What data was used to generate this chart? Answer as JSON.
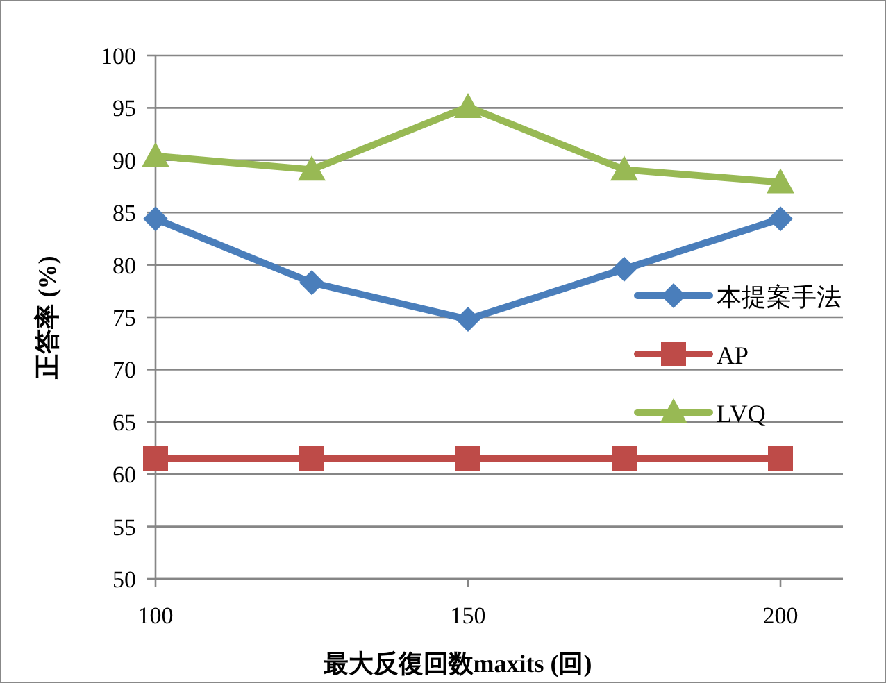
{
  "chart_data": {
    "type": "line",
    "xlabel": "最大反復回数maxits (回)",
    "ylabel": "正答率 (%)",
    "x": [
      100,
      125,
      150,
      175,
      200
    ],
    "series": [
      {
        "name": "本提案手法",
        "color": "#4a7ebb",
        "marker": "diamond",
        "values": [
          84.4,
          78.3,
          74.8,
          79.6,
          84.4
        ]
      },
      {
        "name": "AP",
        "color": "#be4b48",
        "marker": "square",
        "values": [
          61.5,
          61.5,
          61.5,
          61.5,
          61.5
        ]
      },
      {
        "name": "LVQ",
        "color": "#98b954",
        "marker": "triangle",
        "values": [
          90.4,
          89.1,
          95.1,
          89.1,
          87.9
        ]
      }
    ],
    "xlim": [
      100,
      210
    ],
    "xticks": [
      100,
      150,
      200
    ],
    "ylim": [
      50,
      100
    ],
    "yticks": [
      50,
      55,
      60,
      65,
      70,
      75,
      80,
      85,
      90,
      95,
      100
    ],
    "grid": "y",
    "legend": "right",
    "line_style": "solid"
  }
}
